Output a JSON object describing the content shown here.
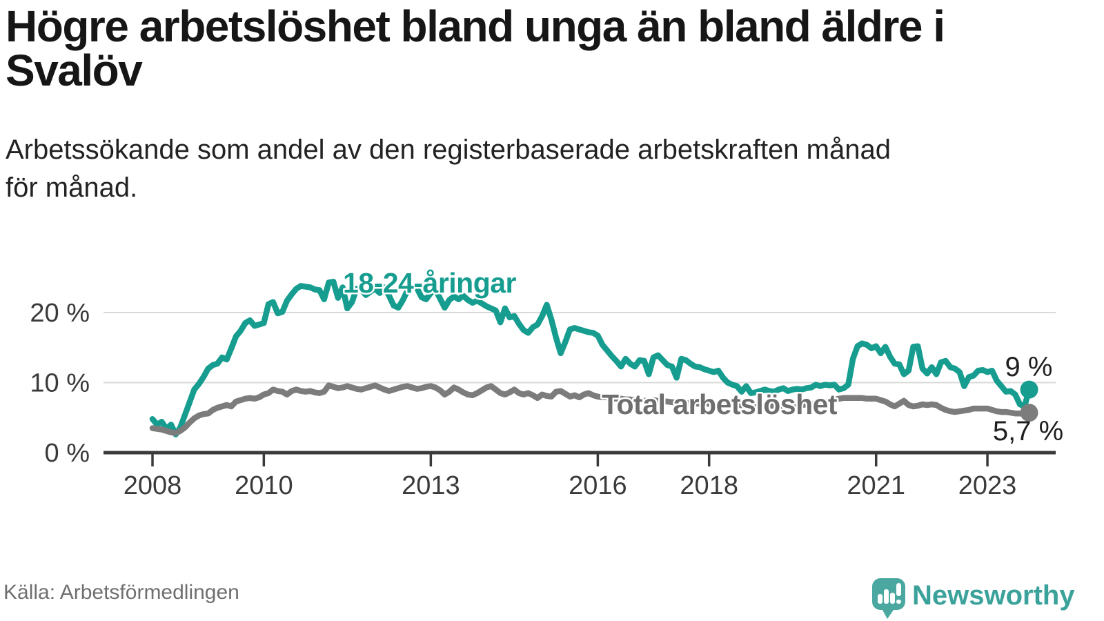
{
  "title": {
    "lines": [
      "Högre arbetslöshet bland unga än bland äldre i",
      "Svalöv"
    ]
  },
  "subtitle": {
    "lines": [
      "Arbetssökande som andel av den registerbaserade arbetskraften månad",
      "för månad."
    ]
  },
  "source": "Källa: Arbetsförmedlingen",
  "branding": {
    "name": "Newsworthy",
    "logo_icon": "chart-bars-speech-bubble-icon",
    "text_color": "#3aa29a",
    "pin_color": "#4aa8a1"
  },
  "colors": {
    "youth_line": "#169d90",
    "total_line": "#7c7c7c",
    "total_label": "#6e6e6e",
    "grid": "#d9d9d9",
    "axis": "#3a3a3a",
    "end_value_text": "#1f1f1f"
  },
  "chart_data": {
    "type": "line",
    "unit": "%",
    "title": "Högre arbetslöshet bland unga än bland äldre i Svalöv",
    "subtitle": "Arbetssökande som andel av den registerbaserade arbetskraften månad för månad.",
    "x_ticks": [
      2008,
      2010,
      2013,
      2016,
      2018,
      2021,
      2023
    ],
    "x_tick_labels": [
      "2008",
      "2010",
      "2013",
      "2016",
      "2018",
      "2021",
      "2023"
    ],
    "y_ticks": [
      0,
      10,
      20
    ],
    "y_tick_labels": [
      "0 %",
      "10 %",
      "20 %"
    ],
    "ylim": [
      0,
      26
    ],
    "xlim": [
      2007.1,
      2024.2
    ],
    "grid": "horizontal",
    "legend": "inline-labels",
    "frequency": "monthly",
    "series": [
      {
        "name": "18-24-åringar",
        "label": "18-24-åringar",
        "end_label": "9 %",
        "end_value": 9.0,
        "color": "#169d90",
        "start_year": 2008,
        "values": [
          4.8,
          4.0,
          4.4,
          3.4,
          4.0,
          2.6,
          3.6,
          5.4,
          7.2,
          9.0,
          9.8,
          10.8,
          12.0,
          12.5,
          12.7,
          13.6,
          13.3,
          14.9,
          16.6,
          17.4,
          18.5,
          18.9,
          18.1,
          18.3,
          18.5,
          21.2,
          21.5,
          19.9,
          20.1,
          21.7,
          22.6,
          23.4,
          23.8,
          23.7,
          23.6,
          23.3,
          23.2,
          21.9,
          24.3,
          24.4,
          22.1,
          23.6,
          20.6,
          21.5,
          23.4,
          23.3,
          22.5,
          23.0,
          23.4,
          22.8,
          23.6,
          22.4,
          21.0,
          20.7,
          21.8,
          23.2,
          23.8,
          23.5,
          22.2,
          21.9,
          22.8,
          23.3,
          22.0,
          20.7,
          21.8,
          22.3,
          21.9,
          22.4,
          21.8,
          21.4,
          21.7,
          21.3,
          20.9,
          20.6,
          20.3,
          18.6,
          20.6,
          19.3,
          19.5,
          18.4,
          17.5,
          17.1,
          17.9,
          18.3,
          19.5,
          21.1,
          19.0,
          16.4,
          14.2,
          15.8,
          17.6,
          17.8,
          17.6,
          17.4,
          17.2,
          17.1,
          16.7,
          15.4,
          14.6,
          13.8,
          13.1,
          12.3,
          13.4,
          12.7,
          12.3,
          13.2,
          13.1,
          11.2,
          13.6,
          13.9,
          13.2,
          12.5,
          12.3,
          10.7,
          13.4,
          13.2,
          12.7,
          12.3,
          12.2,
          11.9,
          11.7,
          11.5,
          11.7,
          10.7,
          10.0,
          9.7,
          9.5,
          8.7,
          9.5,
          8.5,
          8.6,
          8.8,
          9.0,
          8.8,
          8.7,
          9.0,
          9.2,
          8.8,
          9.0,
          9.1,
          9.0,
          9.2,
          9.3,
          9.7,
          9.5,
          9.7,
          9.6,
          9.7,
          9.0,
          9.2,
          9.7,
          13.4,
          15.2,
          15.6,
          15.4,
          14.9,
          15.2,
          14.2,
          15.1,
          13.7,
          12.7,
          12.6,
          11.2,
          11.7,
          15.1,
          15.2,
          12.0,
          11.3,
          12.2,
          11.2,
          12.9,
          13.1,
          12.2,
          12.0,
          11.5,
          9.5,
          10.8,
          11.0,
          11.7,
          11.8,
          11.5,
          11.7,
          10.3,
          9.5,
          8.7,
          8.8,
          8.3,
          6.9,
          6.6,
          9.0
        ]
      },
      {
        "name": "Total arbetslöshet",
        "label": "Total arbetslöshet",
        "end_label": "5,7 %",
        "end_value": 5.7,
        "color": "#7c7c7c",
        "start_year": 2008,
        "values": [
          3.5,
          3.4,
          3.3,
          3.1,
          2.9,
          2.8,
          3.1,
          3.6,
          4.3,
          4.9,
          5.3,
          5.5,
          5.6,
          6.1,
          6.4,
          6.6,
          6.8,
          6.6,
          7.3,
          7.5,
          7.7,
          7.8,
          7.7,
          7.9,
          8.3,
          8.5,
          9.0,
          8.8,
          8.7,
          8.3,
          8.8,
          9.0,
          8.8,
          8.7,
          8.8,
          8.6,
          8.5,
          8.7,
          9.6,
          9.4,
          9.2,
          9.3,
          9.5,
          9.3,
          9.1,
          9.0,
          9.2,
          9.4,
          9.6,
          9.3,
          9.0,
          8.8,
          9.0,
          9.2,
          9.4,
          9.5,
          9.3,
          9.1,
          9.2,
          9.4,
          9.5,
          9.3,
          8.9,
          8.3,
          8.7,
          9.3,
          9.0,
          8.6,
          8.3,
          8.2,
          8.5,
          8.9,
          9.3,
          9.5,
          9.0,
          8.5,
          8.3,
          8.6,
          9.0,
          8.5,
          8.3,
          8.5,
          8.2,
          7.8,
          8.3,
          8.1,
          8.0,
          8.7,
          8.8,
          8.4,
          8.0,
          8.2,
          7.9,
          8.3,
          8.5,
          8.2,
          8.0,
          7.9,
          7.9,
          7.8,
          7.7,
          7.7,
          7.6,
          7.6,
          7.5,
          7.5,
          7.4,
          7.4,
          7.5,
          7.4,
          7.3,
          7.3,
          7.2,
          7.2,
          7.1,
          7.1,
          7.0,
          7.0,
          7.0,
          7.0,
          7.0,
          6.9,
          6.9,
          6.9,
          6.8,
          6.8,
          6.8,
          6.8,
          6.7,
          6.7,
          6.7,
          6.7,
          6.7,
          6.7,
          6.7,
          6.7,
          6.7,
          6.7,
          6.8,
          6.8,
          6.8,
          6.9,
          6.9,
          7.0,
          7.1,
          7.2,
          7.4,
          7.6,
          7.7,
          7.8,
          7.8,
          7.8,
          7.8,
          7.8,
          7.7,
          7.7,
          7.7,
          7.5,
          7.3,
          6.9,
          6.6,
          7.0,
          7.4,
          6.8,
          6.6,
          6.7,
          6.9,
          6.8,
          6.9,
          6.8,
          6.4,
          6.1,
          5.9,
          5.8,
          5.9,
          6.0,
          6.1,
          6.3,
          6.3,
          6.3,
          6.3,
          6.1,
          5.9,
          5.8,
          5.8,
          5.7,
          5.6,
          5.6,
          5.6,
          5.7
        ]
      }
    ]
  }
}
